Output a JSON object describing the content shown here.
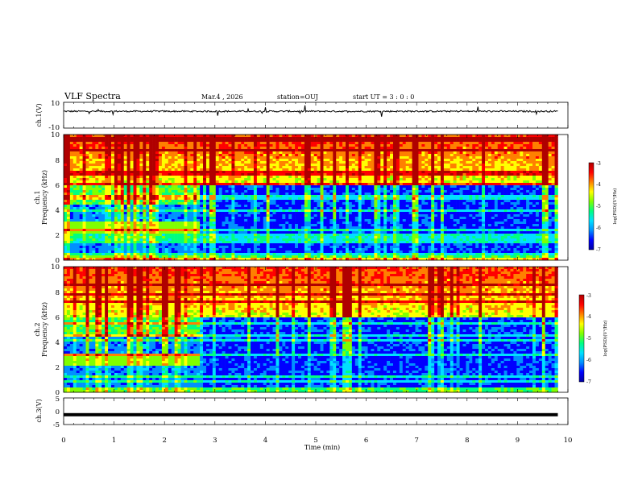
{
  "header": {
    "title": "VLF Spectra",
    "date": "Mar.4 , 2026",
    "station": "station=OUJ",
    "start_ut": "start UT = 3 : 0 : 0"
  },
  "colormap": [
    "#0000a0",
    "#0000ff",
    "#0090ff",
    "#00e0ff",
    "#00ff80",
    "#80ff00",
    "#ffff00",
    "#ff8000",
    "#ff0000",
    "#b00000"
  ],
  "chart_data": [
    {
      "type": "line",
      "panel": "ch1-waveform",
      "ylabel": "ch.1(V)",
      "ylim": [
        -10,
        10
      ],
      "yticks": [
        "10",
        "-10"
      ],
      "trace_level": 3,
      "xlim": [
        0,
        10
      ]
    },
    {
      "type": "heatmap",
      "panel": "ch1-spectrogram",
      "ylabel_line1": "ch.1",
      "ylabel_line2": "Frequency (kHz)",
      "ylim": [
        0,
        10
      ],
      "yticks": [
        "0",
        "2",
        "4",
        "6",
        "8",
        "10"
      ],
      "xlim": [
        0,
        10
      ],
      "data_end_min": 9.8,
      "regime_change_min": 2.7,
      "colorbar": {
        "label": "log(PSD)(V²/Hz)",
        "range": [
          -7,
          -3
        ],
        "ticks": [
          "-3",
          "-4",
          "-5",
          "-6",
          "-7"
        ]
      }
    },
    {
      "type": "heatmap",
      "panel": "ch2-spectrogram",
      "ylabel_line1": "ch.2",
      "ylabel_line2": "Frequency (kHz)",
      "ylim": [
        0,
        10
      ],
      "yticks": [
        "0",
        "2",
        "4",
        "6",
        "8",
        "10"
      ],
      "xlim": [
        0,
        10
      ],
      "data_end_min": 9.8,
      "regime_change_min": 2.7,
      "colorbar": {
        "label": "log(PSD)(V²/Hz)",
        "range": [
          -7,
          -3
        ],
        "ticks": [
          "-3",
          "-4",
          "-5",
          "-6",
          "-7"
        ]
      }
    },
    {
      "type": "line",
      "panel": "ch3-waveform",
      "ylabel": "ch.3(V)",
      "ylim": [
        -5,
        5
      ],
      "yticks": [
        "5",
        "0",
        "-5"
      ],
      "trace_level": -1.3,
      "xlim": [
        0,
        10
      ],
      "xlabel": "Time (min)",
      "xticks": [
        "0",
        "1",
        "2",
        "3",
        "4",
        "5",
        "6",
        "7",
        "8",
        "9",
        "10"
      ]
    }
  ]
}
